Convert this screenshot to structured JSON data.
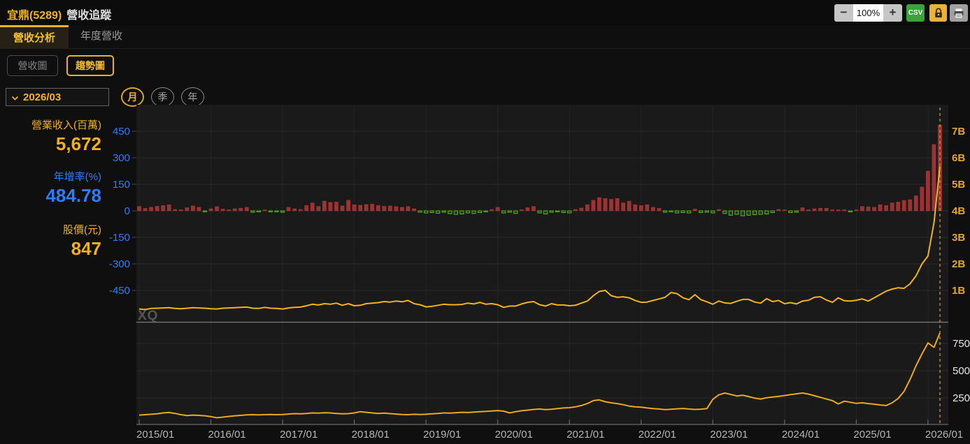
{
  "header": {
    "stock_name": "宜鼎(5289)",
    "page_title": "營收追蹤",
    "zoom_out": "−",
    "zoom_level": "100%",
    "zoom_in": "+",
    "csv_label": "CSV"
  },
  "tabs": [
    {
      "label": "營收分析",
      "active": true
    },
    {
      "label": "年度營收",
      "active": false
    }
  ],
  "chart_type_buttons": [
    {
      "label": "營收圖",
      "active": false
    },
    {
      "label": "趨勢圖",
      "active": true
    }
  ],
  "date_selector": {
    "value": "2026/03"
  },
  "period_buttons": [
    {
      "label": "月",
      "active": true
    },
    {
      "label": "季",
      "active": false
    },
    {
      "label": "年",
      "active": false
    }
  ],
  "stats": [
    {
      "label": "營業收入(百萬)",
      "value": "5,672"
    },
    {
      "label": "年增率(%)",
      "value": "484.78"
    },
    {
      "label": "股價(元)",
      "value": "847"
    }
  ],
  "watermark": "XQ",
  "colors": {
    "accent_yellow": "#f0b028",
    "axis_blue": "#2f7dfa",
    "axis_yellow": "#e2a636",
    "axis_white": "#e8e8e8",
    "x_label": "#b5b5b5",
    "bar_up_fill": "#9e3232",
    "bar_up_stroke": "#a83838",
    "bar_down_fill": "#1f3b10",
    "bar_down_stroke": "#5cb71f",
    "revenue_line": "#f2b31c",
    "price_line": "#eaaa1e",
    "dashed_marker": "#d7a32b",
    "grid": "#2b2b2b",
    "grid_vertical": "#242424",
    "separator": "#6e6e6e",
    "plot_bg": "#1a1a1a",
    "watermark_gray": "#555555"
  },
  "chart_data": [
    {
      "type": "bar",
      "title": "月營收趨勢圖(上):年增率長條 + 營業收入折線",
      "x_start": "2015/01",
      "x_end": "2026/03",
      "x_tick_labels": [
        "2015/01",
        "2016/01",
        "2017/01",
        "2018/01",
        "2019/01",
        "2020/01",
        "2021/01",
        "2022/01",
        "2023/01",
        "2024/01",
        "2025/01",
        "2026/01"
      ],
      "left_axis": {
        "label": "年增率(%)",
        "ticks": [
          450,
          300,
          150,
          0,
          -150,
          -300,
          -450
        ],
        "range": [
          -580,
          580
        ]
      },
      "right_axis": {
        "label": "營業收入",
        "ticks": [
          "7B",
          "6B",
          "5B",
          "4B",
          "3B",
          "2B",
          "1B"
        ],
        "range_B": [
          0,
          7.9
        ]
      },
      "legend_position": "none",
      "grid": true,
      "series": [
        {
          "name": "年增率(%)",
          "type": "bar",
          "axis": "left",
          "values": [
            25,
            14,
            20,
            26,
            30,
            34,
            8,
            6,
            18,
            28,
            20,
            -5,
            12,
            24,
            10,
            5,
            12,
            15,
            20,
            -8,
            -6,
            5,
            -4,
            -5,
            -8,
            20,
            12,
            8,
            30,
            45,
            25,
            55,
            48,
            50,
            28,
            60,
            35,
            32,
            36,
            38,
            30,
            26,
            28,
            24,
            20,
            25,
            12,
            -8,
            -12,
            -10,
            -14,
            -8,
            -16,
            -20,
            -18,
            -12,
            -15,
            -10,
            -5,
            8,
            20,
            -12,
            -8,
            -15,
            6,
            18,
            25,
            -12,
            -18,
            -8,
            -5,
            -10,
            -12,
            8,
            16,
            35,
            60,
            75,
            70,
            65,
            70,
            45,
            55,
            35,
            30,
            35,
            20,
            15,
            -8,
            -5,
            -12,
            -10,
            -12,
            10,
            -10,
            -8,
            -12,
            8,
            -15,
            -25,
            -20,
            -28,
            -25,
            -22,
            -20,
            -18,
            -10,
            8,
            5,
            -10,
            -8,
            18,
            6,
            12,
            15,
            15,
            5,
            4,
            5,
            -4,
            5,
            25,
            22,
            20,
            35,
            30,
            45,
            50,
            59,
            63,
            85,
            135,
            225,
            375,
            484.78
          ]
        },
        {
          "name": "營業收入(十億)",
          "type": "line",
          "axis": "right",
          "values": [
            0.3,
            0.28,
            0.32,
            0.33,
            0.34,
            0.35,
            0.32,
            0.31,
            0.33,
            0.35,
            0.34,
            0.33,
            0.31,
            0.3,
            0.33,
            0.34,
            0.35,
            0.36,
            0.37,
            0.33,
            0.32,
            0.36,
            0.33,
            0.32,
            0.3,
            0.34,
            0.36,
            0.37,
            0.42,
            0.48,
            0.45,
            0.5,
            0.48,
            0.52,
            0.44,
            0.5,
            0.42,
            0.44,
            0.5,
            0.52,
            0.54,
            0.58,
            0.56,
            0.6,
            0.57,
            0.62,
            0.5,
            0.46,
            0.38,
            0.4,
            0.44,
            0.48,
            0.46,
            0.46,
            0.47,
            0.52,
            0.49,
            0.55,
            0.48,
            0.5,
            0.46,
            0.36,
            0.41,
            0.41,
            0.49,
            0.55,
            0.58,
            0.46,
            0.41,
            0.5,
            0.45,
            0.45,
            0.42,
            0.44,
            0.52,
            0.6,
            0.8,
            0.96,
            1.0,
            0.8,
            0.74,
            0.76,
            0.72,
            0.62,
            0.55,
            0.56,
            0.62,
            0.68,
            0.74,
            0.92,
            0.88,
            0.72,
            0.65,
            0.84,
            0.65,
            0.57,
            0.48,
            0.6,
            0.53,
            0.51,
            0.59,
            0.66,
            0.66,
            0.56,
            0.52,
            0.69,
            0.58,
            0.62,
            0.5,
            0.54,
            0.49,
            0.6,
            0.63,
            0.74,
            0.76,
            0.64,
            0.55,
            0.72,
            0.61,
            0.6,
            0.63,
            0.68,
            0.6,
            0.72,
            0.85,
            0.97,
            1.05,
            1.1,
            1.08,
            1.25,
            1.55,
            2.0,
            2.3,
            3.55,
            5.672
          ]
        }
      ]
    },
    {
      "type": "line",
      "title": "股價(元)(下)",
      "x_start": "2015/01",
      "x_end": "2026/03",
      "right_axis": {
        "ticks": [
          750,
          500,
          250
        ]
      },
      "grid": true,
      "series": [
        {
          "name": "股價(元)",
          "type": "line",
          "values": [
            92,
            96,
            100,
            104,
            112,
            116,
            108,
            96,
            88,
            92,
            90,
            86,
            78,
            68,
            74,
            80,
            86,
            90,
            94,
            96,
            94,
            96,
            98,
            96,
            98,
            102,
            106,
            104,
            108,
            112,
            110,
            114,
            112,
            108,
            104,
            106,
            112,
            124,
            118,
            112,
            108,
            110,
            106,
            102,
            98,
            96,
            100,
            98,
            100,
            104,
            108,
            112,
            110,
            114,
            118,
            116,
            120,
            124,
            126,
            130,
            134,
            128,
            112,
            124,
            132,
            138,
            144,
            148,
            142,
            146,
            152,
            158,
            160,
            168,
            180,
            198,
            225,
            232,
            215,
            205,
            198,
            188,
            175,
            168,
            165,
            158,
            152,
            148,
            143,
            146,
            150,
            153,
            148,
            144,
            147,
            152,
            238,
            278,
            295,
            282,
            268,
            275,
            262,
            248,
            240,
            252,
            258,
            264,
            272,
            280,
            288,
            295,
            285,
            270,
            255,
            240,
            225,
            195,
            220,
            210,
            200,
            205,
            198,
            192,
            185,
            180,
            205,
            245,
            310,
            420,
            545,
            655,
            755,
            715,
            847
          ]
        }
      ]
    }
  ]
}
